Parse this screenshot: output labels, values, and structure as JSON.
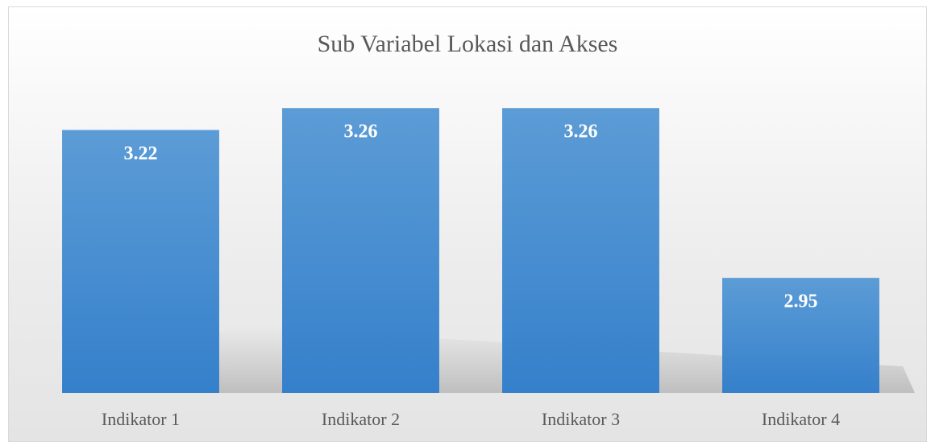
{
  "chart_data": {
    "type": "bar",
    "title": "Sub Variabel Lokasi dan Akses",
    "categories": [
      "Indikator 1",
      "Indikator 2",
      "Indikator 3",
      "Indikator 4"
    ],
    "values": [
      3.22,
      3.26,
      3.26,
      2.95
    ],
    "color": "#4a8fd3",
    "ylim": [
      2.74,
      3.3
    ],
    "grid": false
  }
}
